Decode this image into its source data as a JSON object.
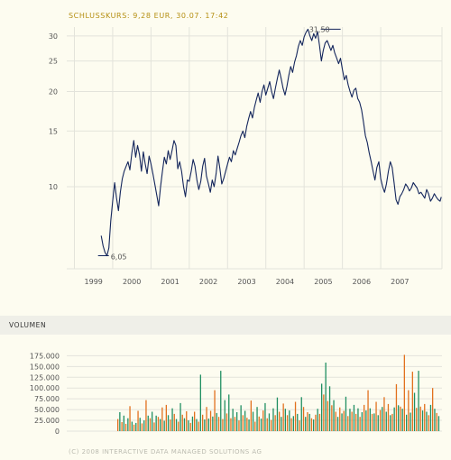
{
  "header": {
    "title": "SCHLUSSKURS: 9,28 EUR, 30.07. 17:42"
  },
  "volume_header": {
    "title": "VOLUMEN"
  },
  "footer": {
    "text": "(C) 2008 INTERACTIVE DATA MANAGED SOLUTIONS AG"
  },
  "colors": {
    "background": "#fdfcf0",
    "grid": "#e3e3db",
    "price_line": "#14265c",
    "volume_orange": "#e2711e",
    "volume_green": "#208f62",
    "title_gold": "#b58f12"
  },
  "chart_data": [
    {
      "type": "line",
      "scale": "log",
      "title": "SCHLUSSKURS: 9,28 EUR, 30.07. 17:42",
      "x_ticks": [
        "1999",
        "2000",
        "2001",
        "2002",
        "2003",
        "2004",
        "2005",
        "2006",
        "2007"
      ],
      "y_ticks": [
        10,
        15,
        20,
        25,
        30
      ],
      "y_tick_labels": [
        "10",
        "15",
        "20",
        "25",
        "30"
      ],
      "ylim": [
        5.5,
        32
      ],
      "xlim": [
        1998.8,
        2008.6
      ],
      "annotations": [
        {
          "label": "31,50",
          "x": 2006.0,
          "y": 31.5
        },
        {
          "label": "6,05",
          "x": 1999.9,
          "y": 6.05
        }
      ],
      "series": [
        {
          "x": [
            1999.7,
            1999.75,
            1999.8,
            1999.85,
            1999.9,
            1999.95,
            2000.0,
            2000.05,
            2000.1,
            2000.15,
            2000.2,
            2000.25,
            2000.3,
            2000.35,
            2000.4,
            2000.45,
            2000.5,
            2000.55,
            2000.6,
            2000.65,
            2000.7,
            2000.75,
            2000.8,
            2000.85,
            2000.9,
            2000.95,
            2001.0,
            2001.05,
            2001.1,
            2001.15,
            2001.2,
            2001.25,
            2001.3,
            2001.35,
            2001.4,
            2001.45,
            2001.5,
            2001.55,
            2001.6,
            2001.65,
            2001.7,
            2001.75,
            2001.8,
            2001.85,
            2001.9,
            2001.95,
            2002.0,
            2002.05,
            2002.1,
            2002.15,
            2002.2,
            2002.25,
            2002.3,
            2002.35,
            2002.4,
            2002.45,
            2002.5,
            2002.55,
            2002.6,
            2002.65,
            2002.7,
            2002.75,
            2002.8,
            2002.85,
            2002.9,
            2002.95,
            2003.0,
            2003.05,
            2003.1,
            2003.15,
            2003.2,
            2003.25,
            2003.3,
            2003.35,
            2003.4,
            2003.45,
            2003.5,
            2003.55,
            2003.6,
            2003.65,
            2003.7,
            2003.75,
            2003.8,
            2003.85,
            2003.9,
            2003.95,
            2004.0,
            2004.05,
            2004.1,
            2004.15,
            2004.2,
            2004.25,
            2004.3,
            2004.35,
            2004.4,
            2004.45,
            2004.5,
            2004.55,
            2004.6,
            2004.65,
            2004.7,
            2004.75,
            2004.8,
            2004.85,
            2004.9,
            2004.95,
            2005.0,
            2005.05,
            2005.1,
            2005.15,
            2005.2,
            2005.25,
            2005.3,
            2005.35,
            2005.4,
            2005.45,
            2005.5,
            2005.55,
            2005.6,
            2005.65,
            2005.7,
            2005.75,
            2005.8,
            2005.85,
            2005.9,
            2005.95,
            2006.0,
            2006.05,
            2006.1,
            2006.15,
            2006.2,
            2006.25,
            2006.3,
            2006.35,
            2006.4,
            2006.45,
            2006.5,
            2006.55,
            2006.6,
            2006.65,
            2006.7,
            2006.75,
            2006.8,
            2006.85,
            2006.9,
            2006.95,
            2007.0,
            2007.05,
            2007.1,
            2007.15,
            2007.2,
            2007.25,
            2007.3,
            2007.35,
            2007.4,
            2007.45,
            2007.5,
            2007.55,
            2007.6,
            2007.65,
            2007.7,
            2007.75,
            2007.8,
            2007.85,
            2007.9,
            2007.95,
            2008.0,
            2008.05,
            2008.1,
            2008.15,
            2008.2,
            2008.25,
            2008.3,
            2008.35,
            2008.4,
            2008.45,
            2008.5,
            2008.55,
            2008.58
          ],
          "values": [
            7.0,
            6.5,
            6.2,
            6.05,
            6.4,
            7.8,
            9.0,
            10.3,
            9.2,
            8.4,
            9.6,
            10.6,
            11.2,
            11.6,
            12.0,
            11.3,
            12.8,
            14.0,
            12.4,
            13.5,
            12.6,
            11.2,
            12.9,
            11.8,
            11.0,
            12.5,
            11.8,
            11.0,
            10.2,
            9.4,
            8.7,
            10.0,
            11.2,
            12.4,
            11.8,
            13.0,
            12.2,
            13.0,
            14.0,
            13.5,
            11.4,
            12.0,
            11.2,
            10.0,
            9.3,
            10.5,
            10.4,
            11.2,
            12.2,
            11.6,
            10.5,
            9.8,
            10.4,
            11.6,
            12.3,
            10.8,
            10.2,
            9.6,
            10.5,
            10.0,
            11.0,
            12.5,
            11.4,
            10.2,
            10.6,
            11.2,
            11.8,
            12.4,
            12.0,
            13.0,
            12.6,
            13.2,
            13.8,
            14.5,
            15.0,
            14.3,
            15.5,
            16.4,
            17.3,
            16.5,
            17.8,
            18.8,
            19.8,
            18.5,
            20.0,
            21.0,
            19.5,
            20.5,
            21.5,
            20.0,
            19.0,
            20.5,
            22.0,
            23.4,
            22.0,
            20.5,
            19.5,
            20.8,
            22.5,
            24.0,
            23.0,
            24.8,
            26.0,
            27.8,
            29.0,
            28.0,
            29.8,
            30.8,
            31.5,
            30.0,
            29.0,
            30.5,
            29.5,
            31.0,
            28.0,
            25.0,
            27.0,
            28.5,
            29.0,
            28.0,
            27.0,
            28.0,
            26.5,
            25.5,
            24.5,
            25.5,
            23.5,
            21.8,
            22.5,
            21.0,
            20.0,
            19.2,
            20.2,
            20.5,
            19.0,
            18.5,
            17.5,
            16.0,
            14.5,
            13.8,
            12.8,
            12.0,
            11.2,
            10.5,
            11.5,
            12.0,
            10.6,
            10.0,
            9.6,
            10.2,
            11.2,
            12.0,
            11.5,
            10.3,
            9.1,
            8.8,
            9.3,
            9.5,
            9.8,
            10.2,
            10.0,
            9.7,
            9.9,
            10.3,
            10.1,
            9.9,
            9.5,
            9.6,
            9.4,
            9.2,
            9.8,
            9.5,
            9.0,
            9.2,
            9.5,
            9.28,
            9.1,
            9.0,
            9.28
          ]
        }
      ]
    },
    {
      "type": "bar",
      "title": "VOLUMEN",
      "ylim": [
        0,
        180000
      ],
      "y_ticks": [
        0,
        25000,
        50000,
        75000,
        100000,
        125000,
        150000,
        175000
      ],
      "y_tick_labels": [
        "0",
        "25.000",
        "50.000",
        "75.000",
        "100.000",
        "125.000",
        "150.000",
        "175.000"
      ],
      "values": [
        28000,
        44000,
        21000,
        36000,
        17000,
        30000,
        58000,
        22000,
        15000,
        19000,
        47000,
        31000,
        18000,
        25000,
        72000,
        36000,
        30000,
        45000,
        20000,
        36000,
        33000,
        28000,
        55000,
        24000,
        61000,
        37000,
        27000,
        53000,
        40000,
        28000,
        22000,
        65000,
        38000,
        30000,
        46000,
        25000,
        19000,
        34000,
        45000,
        28000,
        22000,
        131000,
        38000,
        27000,
        56000,
        29000,
        47000,
        34000,
        95000,
        42000,
        33000,
        140000,
        28000,
        72000,
        41000,
        85000,
        30000,
        52000,
        33000,
        44000,
        25000,
        60000,
        37000,
        47000,
        31000,
        27000,
        71000,
        45000,
        22000,
        56000,
        34000,
        29000,
        48000,
        65000,
        30000,
        41000,
        26000,
        53000,
        37000,
        78000,
        45000,
        33000,
        64000,
        52000,
        37000,
        48000,
        30000,
        35000,
        68000,
        40000,
        25000,
        79000,
        56000,
        33000,
        44000,
        40000,
        30000,
        27000,
        38000,
        52000,
        40000,
        110000,
        85000,
        159000,
        70000,
        104000,
        60000,
        72000,
        45000,
        33000,
        55000,
        41000,
        47000,
        80000,
        35000,
        52000,
        45000,
        61000,
        40000,
        53000,
        33000,
        44000,
        61000,
        48000,
        95000,
        53000,
        40000,
        41000,
        68000,
        37000,
        49000,
        56000,
        79000,
        45000,
        63000,
        37000,
        40000,
        55000,
        109000,
        60000,
        57000,
        52000,
        177000,
        38000,
        95000,
        43000,
        138000,
        89000,
        54000,
        140000,
        57000,
        48000,
        63000,
        45000,
        37000,
        61000,
        100000,
        52000,
        42000,
        35000
      ]
    }
  ]
}
